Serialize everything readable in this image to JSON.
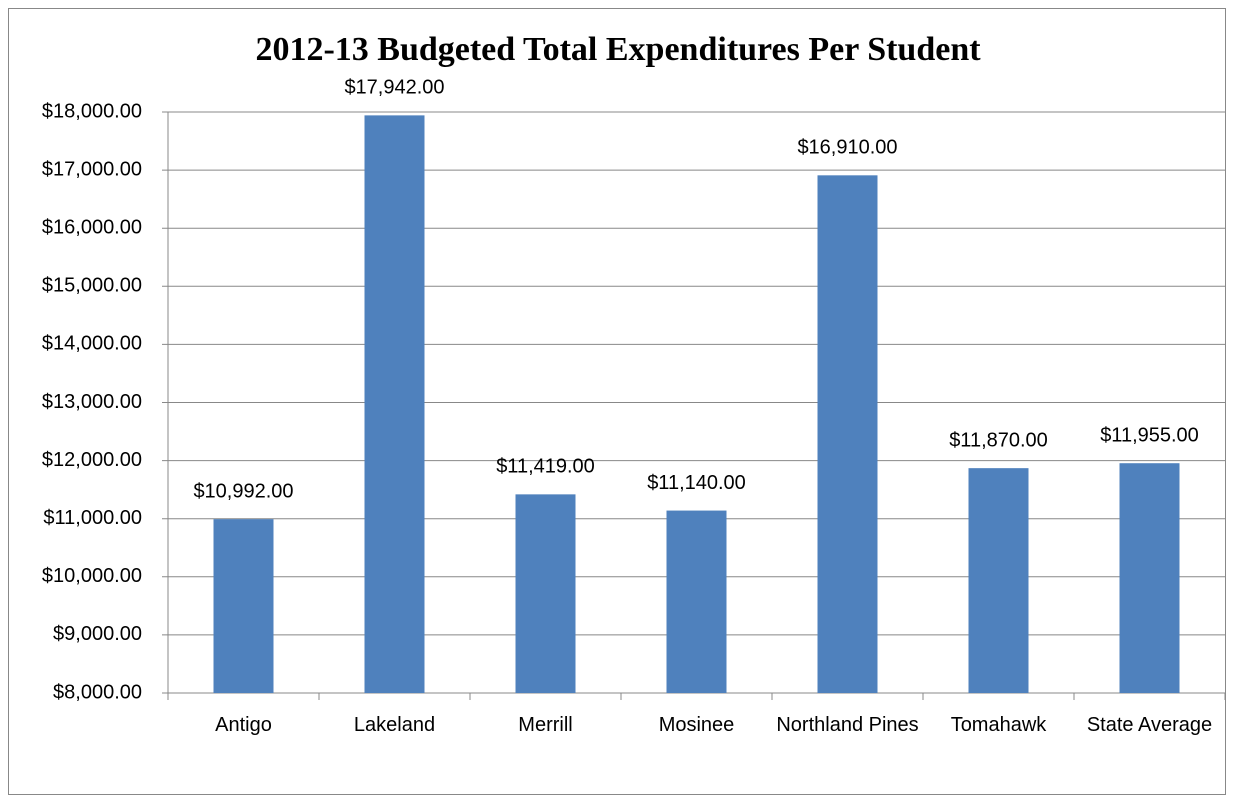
{
  "chart_data": {
    "type": "bar",
    "title": "2012-13 Budgeted Total Expenditures Per Student",
    "categories": [
      "Antigo",
      "Lakeland",
      "Merrill",
      "Mosinee",
      "Northland Pines",
      "Tomahawk",
      "State Average"
    ],
    "values": [
      10992,
      17942,
      11419,
      11140,
      16910,
      11870,
      11955
    ],
    "value_labels": [
      "$10,992.00",
      "$17,942.00",
      "$11,419.00",
      "$11,140.00",
      "$16,910.00",
      "$11,870.00",
      "$11,955.00"
    ],
    "color": "#4f81bd",
    "ylim": [
      8000,
      18000
    ],
    "yticks": [
      {
        "value": 8000,
        "label": "$8,000.00"
      },
      {
        "value": 9000,
        "label": "$9,000.00"
      },
      {
        "value": 10000,
        "label": "$10,000.00"
      },
      {
        "value": 11000,
        "label": "$11,000.00"
      },
      {
        "value": 12000,
        "label": "$12,000.00"
      },
      {
        "value": 13000,
        "label": "$13,000.00"
      },
      {
        "value": 14000,
        "label": "$14,000.00"
      },
      {
        "value": 15000,
        "label": "$15,000.00"
      },
      {
        "value": 16000,
        "label": "$16,000.00"
      },
      {
        "value": 17000,
        "label": "$17,000.00"
      },
      {
        "value": 18000,
        "label": "$18,000.00"
      }
    ],
    "grid": true
  }
}
